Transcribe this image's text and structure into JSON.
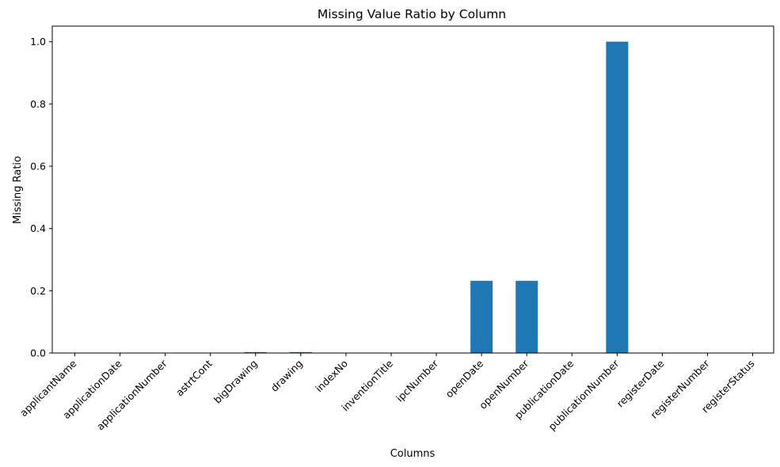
{
  "chart_data": {
    "type": "bar",
    "title": "Missing Value Ratio by Column",
    "xlabel": "Columns",
    "ylabel": "Missing Ratio",
    "categories": [
      "applicantName",
      "applicationDate",
      "applicationNumber",
      "astrtCont",
      "bigDrawing",
      "drawing",
      "indexNo",
      "inventionTitle",
      "ipcNumber",
      "openDate",
      "openNumber",
      "publicationDate",
      "publicationNumber",
      "registerDate",
      "registerNumber",
      "registerStatus"
    ],
    "values": [
      0,
      0,
      0,
      0,
      0.003,
      0.003,
      0,
      0,
      0,
      0.232,
      0.232,
      0,
      1.0,
      0,
      0,
      0
    ],
    "ylim": [
      0,
      1.05
    ],
    "yticks": [
      0.0,
      0.2,
      0.4,
      0.6,
      0.8,
      1.0
    ],
    "ytick_labels": [
      "0.0",
      "0.2",
      "0.4",
      "0.6",
      "0.8",
      "1.0"
    ],
    "bar_color": "#1f77b4",
    "grid": false,
    "legend": "none"
  }
}
